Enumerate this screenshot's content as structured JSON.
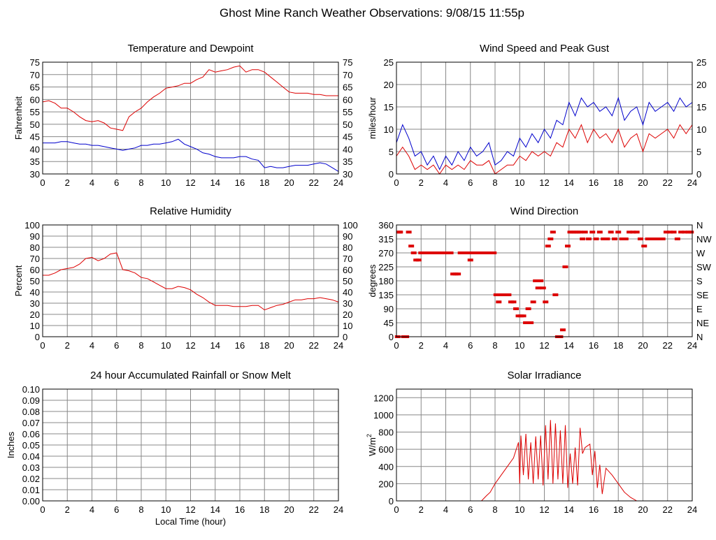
{
  "main_title": "Ghost Mine Ranch Weather Observations: 9/08/15 11:55p",
  "colors": {
    "red": "#dd0000",
    "blue": "#0000cc",
    "grid": "#888888"
  },
  "chart_data": [
    {
      "id": "temp",
      "type": "line",
      "title": "Temperature and Dewpoint",
      "ylabel": "Fahrenheit",
      "xlabel": "",
      "xlim": [
        0,
        24
      ],
      "ylim": [
        30,
        75
      ],
      "yticks": [
        30,
        35,
        40,
        45,
        50,
        55,
        60,
        65,
        70,
        75
      ],
      "xticks": [
        0,
        2,
        4,
        6,
        8,
        10,
        12,
        14,
        16,
        18,
        20,
        22,
        24
      ],
      "right_ticks": true,
      "series": [
        {
          "color": "red",
          "x": [
            0,
            0.5,
            1,
            1.5,
            2,
            2.5,
            3,
            3.5,
            4,
            4.5,
            5,
            5.5,
            6,
            6.5,
            7,
            7.5,
            8,
            8.5,
            9,
            9.5,
            10,
            10.5,
            11,
            11.5,
            12,
            12.5,
            13,
            13.5,
            14,
            14.5,
            15,
            15.5,
            16,
            16.5,
            17,
            17.5,
            18,
            18.5,
            19,
            19.5,
            20,
            20.5,
            21,
            21.5,
            22,
            22.5,
            23,
            23.5,
            24
          ],
          "y": [
            59,
            59.5,
            58.5,
            56.5,
            56.5,
            55,
            53,
            51.5,
            51,
            51.5,
            50.5,
            48.5,
            48,
            47.5,
            53,
            55,
            56.5,
            59,
            61,
            62.5,
            64.5,
            65,
            65.5,
            66.5,
            66.5,
            68,
            69,
            72,
            71,
            71.5,
            72,
            73,
            73.5,
            71,
            72,
            72,
            71,
            69,
            67,
            65,
            63,
            62.5,
            62.5,
            62.5,
            62,
            62,
            61.5,
            61.5,
            61.5
          ]
        },
        {
          "color": "blue",
          "x": [
            0,
            0.5,
            1,
            1.5,
            2,
            2.5,
            3,
            3.5,
            4,
            4.5,
            5,
            5.5,
            6,
            6.5,
            7,
            7.5,
            8,
            8.5,
            9,
            9.5,
            10,
            10.5,
            11,
            11.5,
            12,
            12.5,
            13,
            13.5,
            14,
            14.5,
            15,
            15.5,
            16,
            16.5,
            17,
            17.5,
            18,
            18.5,
            19,
            19.5,
            20,
            20.5,
            21,
            21.5,
            22,
            22.5,
            23,
            23.5,
            24
          ],
          "y": [
            42.5,
            42.5,
            42.5,
            43,
            43,
            42.5,
            42,
            42,
            41.5,
            41.5,
            41,
            40.5,
            40,
            39.5,
            40,
            40.5,
            41.5,
            41.5,
            42,
            42,
            42.5,
            43,
            44,
            42,
            41,
            40,
            38.5,
            38,
            37,
            36.5,
            36.5,
            36.5,
            37,
            37,
            36,
            35.5,
            32.5,
            33,
            32.5,
            32.5,
            33,
            33.5,
            33.5,
            33.5,
            34,
            34.5,
            34,
            32.5,
            31
          ]
        }
      ]
    },
    {
      "id": "wind",
      "type": "line",
      "title": "Wind Speed and Peak Gust",
      "ylabel": "miles/hour",
      "xlabel": "",
      "xlim": [
        0,
        24
      ],
      "ylim": [
        0,
        25
      ],
      "yticks": [
        0,
        5,
        10,
        15,
        20,
        25
      ],
      "xticks": [
        0,
        2,
        4,
        6,
        8,
        10,
        12,
        14,
        16,
        18,
        20,
        22,
        24
      ],
      "right_ticks": true,
      "series": [
        {
          "color": "blue",
          "x": [
            0,
            0.5,
            1,
            1.5,
            2,
            2.5,
            3,
            3.5,
            4,
            4.5,
            5,
            5.5,
            6,
            6.5,
            7,
            7.5,
            8,
            8.5,
            9,
            9.5,
            10,
            10.5,
            11,
            11.5,
            12,
            12.5,
            13,
            13.5,
            14,
            14.5,
            15,
            15.5,
            16,
            16.5,
            17,
            17.5,
            18,
            18.5,
            19,
            19.5,
            20,
            20.5,
            21,
            21.5,
            22,
            22.5,
            23,
            23.5,
            24
          ],
          "y": [
            7,
            11,
            8,
            4,
            5,
            2,
            4,
            1,
            4,
            2,
            5,
            3,
            6,
            4,
            5,
            7,
            2,
            3,
            5,
            4,
            8,
            6,
            9,
            7,
            10,
            8,
            12,
            11,
            16,
            13,
            17,
            15,
            16,
            14,
            15,
            13,
            17,
            12,
            14,
            15,
            11,
            16,
            14,
            15,
            16,
            14,
            17,
            15,
            16
          ]
        },
        {
          "color": "red",
          "x": [
            0,
            0.5,
            1,
            1.5,
            2,
            2.5,
            3,
            3.5,
            4,
            4.5,
            5,
            5.5,
            6,
            6.5,
            7,
            7.5,
            8,
            8.5,
            9,
            9.5,
            10,
            10.5,
            11,
            11.5,
            12,
            12.5,
            13,
            13.5,
            14,
            14.5,
            15,
            15.5,
            16,
            16.5,
            17,
            17.5,
            18,
            18.5,
            19,
            19.5,
            20,
            20.5,
            21,
            21.5,
            22,
            22.5,
            23,
            23.5,
            24
          ],
          "y": [
            4,
            6,
            4,
            1,
            2,
            1,
            2,
            0,
            2,
            1,
            2,
            1,
            3,
            2,
            2,
            3,
            0,
            1,
            2,
            2,
            4,
            3,
            5,
            4,
            5,
            4,
            7,
            6,
            10,
            8,
            11,
            7,
            10,
            8,
            9,
            7,
            10,
            6,
            8,
            9,
            5,
            9,
            8,
            9,
            10,
            8,
            11,
            9,
            11
          ]
        }
      ]
    },
    {
      "id": "rh",
      "type": "line",
      "title": "Relative Humidity",
      "ylabel": "Percent",
      "xlabel": "",
      "xlim": [
        0,
        24
      ],
      "ylim": [
        0,
        100
      ],
      "yticks": [
        0,
        10,
        20,
        30,
        40,
        50,
        60,
        70,
        80,
        90,
        100
      ],
      "xticks": [
        0,
        2,
        4,
        6,
        8,
        10,
        12,
        14,
        16,
        18,
        20,
        22,
        24
      ],
      "right_ticks": true,
      "series": [
        {
          "color": "red",
          "x": [
            0,
            0.5,
            1,
            1.5,
            2,
            2.5,
            3,
            3.5,
            4,
            4.5,
            5,
            5.5,
            6,
            6.5,
            7,
            7.5,
            8,
            8.5,
            9,
            9.5,
            10,
            10.5,
            11,
            11.5,
            12,
            12.5,
            13,
            13.5,
            14,
            14.5,
            15,
            15.5,
            16,
            16.5,
            17,
            17.5,
            18,
            18.5,
            19,
            19.5,
            20,
            20.5,
            21,
            21.5,
            22,
            22.5,
            23,
            23.5,
            24
          ],
          "y": [
            55,
            55,
            57,
            60,
            61,
            62,
            65,
            70,
            71,
            68,
            70,
            74,
            75,
            60,
            59,
            57,
            53,
            52,
            49,
            46,
            43,
            43,
            45,
            44,
            42,
            38,
            35,
            31,
            28,
            28,
            28,
            27,
            27,
            27,
            28,
            28,
            24,
            26,
            28,
            29,
            31,
            33,
            33,
            34,
            34,
            35,
            34,
            33,
            31
          ]
        }
      ]
    },
    {
      "id": "wdir",
      "type": "scatter",
      "title": "Wind Direction",
      "ylabel": "degrees",
      "xlabel": "",
      "xlim": [
        0,
        24
      ],
      "ylim": [
        0,
        360
      ],
      "yticks": [
        0,
        45,
        90,
        135,
        180,
        225,
        270,
        315,
        360
      ],
      "xticks": [
        0,
        2,
        4,
        6,
        8,
        10,
        12,
        14,
        16,
        18,
        20,
        22,
        24
      ],
      "right_labels": [
        "N",
        "NE",
        "E",
        "SE",
        "S",
        "SW",
        "W",
        "NW",
        "N"
      ],
      "series": [
        {
          "color": "red",
          "x": [
            0.1,
            0.2,
            0.3,
            0.6,
            0.8,
            1.0,
            1.2,
            1.4,
            1.6,
            1.8,
            2.0,
            2.2,
            2.4,
            2.6,
            2.8,
            3.0,
            3.2,
            3.4,
            3.6,
            3.8,
            4.0,
            4.2,
            4.4,
            4.6,
            4.8,
            5.0,
            5.2,
            5.5,
            5.8,
            6.0,
            6.2,
            6.5,
            6.8,
            7.0,
            7.3,
            7.6,
            7.9,
            8.1,
            8.3,
            8.5,
            8.7,
            8.9,
            9.1,
            9.3,
            9.5,
            9.7,
            9.9,
            10.1,
            10.3,
            10.5,
            10.7,
            10.9,
            11.1,
            11.3,
            11.5,
            11.7,
            11.9,
            12.1,
            12.3,
            12.5,
            12.7,
            12.9,
            13.1,
            13.3,
            13.5,
            13.7,
            13.9,
            14.1,
            14.3,
            14.5,
            14.7,
            14.9,
            15.1,
            15.3,
            15.6,
            15.9,
            16.2,
            16.5,
            16.8,
            17.1,
            17.4,
            17.7,
            18.0,
            18.3,
            18.6,
            18.9,
            19.2,
            19.5,
            19.8,
            20.1,
            20.4,
            20.7,
            21.0,
            21.3,
            21.6,
            21.9,
            22.2,
            22.5,
            22.8,
            23.1,
            23.4,
            23.7,
            23.9
          ],
          "y": [
            0,
            337,
            337,
            0,
            0,
            337,
            292,
            270,
            247,
            247,
            270,
            270,
            270,
            270,
            270,
            270,
            270,
            270,
            270,
            270,
            270,
            270,
            270,
            202,
            202,
            202,
            270,
            270,
            270,
            247,
            270,
            270,
            270,
            270,
            270,
            270,
            270,
            135,
            112,
            135,
            135,
            135,
            135,
            112,
            112,
            90,
            67,
            67,
            67,
            45,
            90,
            45,
            112,
            180,
            157,
            180,
            157,
            112,
            292,
            315,
            337,
            135,
            0,
            0,
            22,
            225,
            292,
            337,
            337,
            337,
            337,
            337,
            315,
            337,
            315,
            337,
            315,
            337,
            315,
            315,
            337,
            315,
            337,
            315,
            315,
            337,
            337,
            337,
            315,
            292,
            315,
            315,
            315,
            315,
            315,
            337,
            337,
            337,
            315,
            337,
            337,
            337,
            337
          ]
        }
      ]
    },
    {
      "id": "rain",
      "type": "line",
      "title": "24 hour Accumulated Rainfall or Snow Melt",
      "ylabel": "Inches",
      "xlabel": "Local Time (hour)",
      "xlim": [
        0,
        24
      ],
      "ylim": [
        0,
        0.1
      ],
      "yticks": [
        0,
        0.01,
        0.02,
        0.03,
        0.04,
        0.05,
        0.06,
        0.07,
        0.08,
        0.09,
        0.1
      ],
      "ytick_labels": [
        "0.00",
        "0.01",
        "0.02",
        "0.03",
        "0.04",
        "0.05",
        "0.06",
        "0.07",
        "0.08",
        "0.09",
        "0.10"
      ],
      "xticks": [
        0,
        2,
        4,
        6,
        8,
        10,
        12,
        14,
        16,
        18,
        20,
        22,
        24
      ],
      "series": [
        {
          "color": "red",
          "x": [
            0,
            24
          ],
          "y": [
            0,
            0
          ]
        }
      ]
    },
    {
      "id": "solar",
      "type": "line",
      "title": "Solar Irradiance",
      "ylabel": "W/m",
      "ylabel_sup": "2",
      "xlabel": "",
      "xlim": [
        0,
        24
      ],
      "ylim": [
        0,
        1300
      ],
      "yticks": [
        0,
        200,
        400,
        600,
        800,
        1000,
        1200
      ],
      "xticks": [
        0,
        2,
        4,
        6,
        8,
        10,
        12,
        14,
        16,
        18,
        20,
        22,
        24
      ],
      "series": [
        {
          "color": "red",
          "x": [
            0,
            6.9,
            7.3,
            7.6,
            8,
            8.5,
            9,
            9.5,
            9.9,
            10,
            10.1,
            10.3,
            10.5,
            10.7,
            10.9,
            11.1,
            11.3,
            11.5,
            11.7,
            11.9,
            12.1,
            12.3,
            12.5,
            12.7,
            12.9,
            13.1,
            13.3,
            13.5,
            13.7,
            13.9,
            14.1,
            14.3,
            14.5,
            14.7,
            14.9,
            15.1,
            15.3,
            15.5,
            15.7,
            15.9,
            16.1,
            16.3,
            16.5,
            16.7,
            17,
            17.5,
            18,
            18.5,
            19,
            19.5,
            24
          ],
          "y": [
            0,
            0,
            60,
            100,
            200,
            300,
            400,
            500,
            680,
            200,
            760,
            300,
            780,
            250,
            680,
            200,
            750,
            250,
            760,
            180,
            880,
            250,
            940,
            200,
            900,
            250,
            820,
            200,
            880,
            150,
            550,
            200,
            620,
            180,
            850,
            550,
            620,
            640,
            660,
            300,
            580,
            150,
            420,
            80,
            380,
            300,
            200,
            100,
            40,
            0,
            0
          ]
        }
      ]
    }
  ]
}
